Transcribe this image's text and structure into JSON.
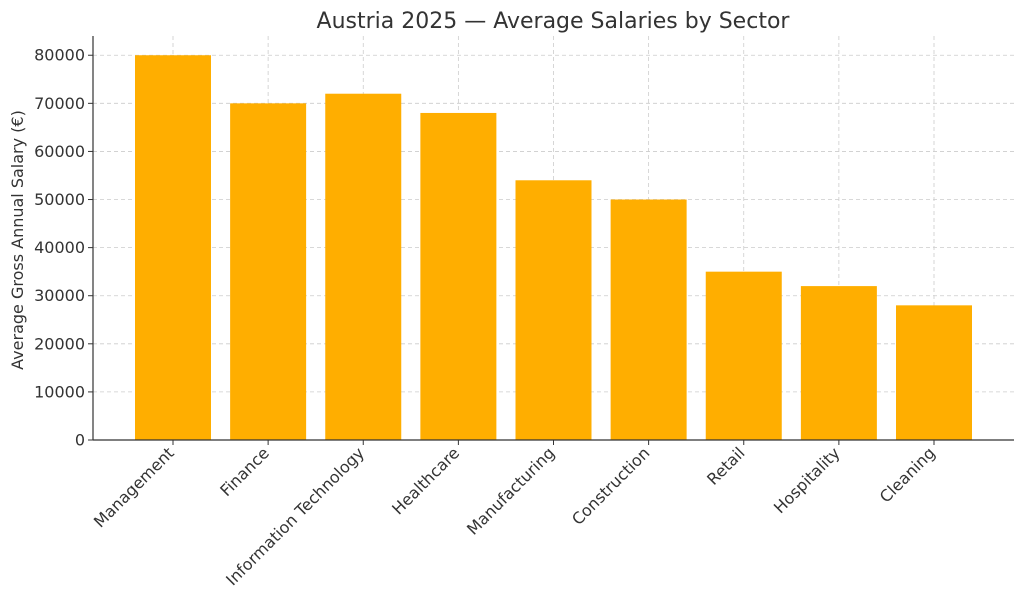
{
  "chart_data": {
    "type": "bar",
    "title": "Austria 2025 — Average Salaries by Sector",
    "xlabel": "",
    "ylabel": "Average Gross Annual Salary (€)",
    "categories": [
      "Management",
      "Finance",
      "Information Technology",
      "Healthcare",
      "Manufacturing",
      "Construction",
      "Retail",
      "Hospitality",
      "Cleaning"
    ],
    "values": [
      80000,
      70000,
      72000,
      68000,
      54000,
      50000,
      35000,
      32000,
      28000
    ],
    "ylim": [
      0,
      84000
    ],
    "yticks": [
      0,
      10000,
      20000,
      30000,
      40000,
      50000,
      60000,
      70000,
      80000
    ],
    "grid": true,
    "bar_color": "#FFAE00"
  }
}
